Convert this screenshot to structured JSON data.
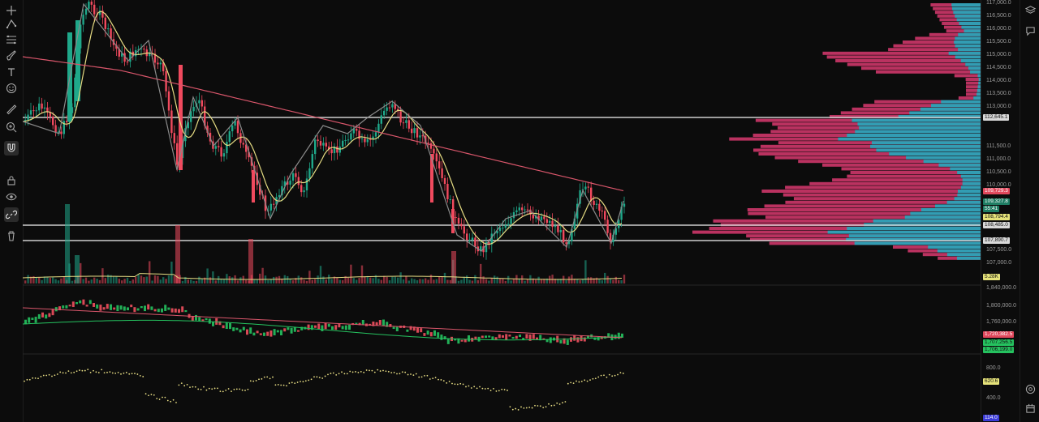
{
  "toolbar": {
    "tools": [
      {
        "name": "crosshair-tool",
        "icon": "crosshair-icon"
      },
      {
        "name": "trend-line-tool",
        "icon": "trend-line-icon"
      },
      {
        "name": "fib-tool",
        "icon": "fib-retracement-icon"
      },
      {
        "name": "brush-tool",
        "icon": "brush-icon"
      },
      {
        "name": "text-tool",
        "icon": "text-icon"
      },
      {
        "name": "emoji-tool",
        "icon": "emoji-icon"
      },
      {
        "name": "ruler-tool",
        "icon": "ruler-icon"
      },
      {
        "name": "zoom-tool",
        "icon": "zoom-in-icon"
      },
      {
        "name": "magnet-tool",
        "icon": "magnet-icon",
        "active": true
      },
      {
        "name": "lock-drawings-tool",
        "icon": "lock-icon"
      },
      {
        "name": "hide-drawings-tool",
        "icon": "eye-icon"
      },
      {
        "name": "link-tool",
        "icon": "link-icon",
        "active": true
      },
      {
        "name": "delete-drawings-tool",
        "icon": "trash-icon"
      }
    ]
  },
  "right_rail": [
    {
      "name": "layers-button",
      "icon": "layers-icon"
    },
    {
      "name": "chat-button",
      "icon": "chat-icon"
    },
    {
      "name": "alerts-button",
      "icon": "target-icon"
    },
    {
      "name": "calendar-button",
      "icon": "calendar-icon"
    }
  ],
  "price_axis": {
    "ticks": [
      "117,000.0",
      "116,500.0",
      "116,000.0",
      "115,500.0",
      "115,000.0",
      "114,500.0",
      "114,000.0",
      "113,500.0",
      "113,000.0",
      "111,500.0",
      "111,000.0",
      "110,500.0",
      "110,000.0",
      "107,500.0",
      "107,000.0"
    ],
    "labels": [
      {
        "text": "112,645.1",
        "bg": "#d9d9d9",
        "fg": "#111111"
      },
      {
        "text": "109,729.3",
        "bg": "#e0475b",
        "fg": "#ffffff"
      },
      {
        "text": "109,327.8",
        "bg": "#1e7d63",
        "fg": "#ffffff"
      },
      {
        "text": "55:41",
        "bg": "#1e7d63",
        "fg": "#ffffff"
      },
      {
        "text": "108,794.4",
        "bg": "#e6e37a",
        "fg": "#111111"
      },
      {
        "text": "108,485.0",
        "bg": "#d9d9d9",
        "fg": "#111111"
      },
      {
        "text": "107,890.7",
        "bg": "#d9d9d9",
        "fg": "#111111"
      },
      {
        "text": "5.28K",
        "bg": "#e6e37a",
        "fg": "#111111"
      }
    ],
    "pane2_ticks": [
      "1,840,000.0",
      "1,800,000.0",
      "1,760,000.0"
    ],
    "pane2_labels": [
      {
        "text": "1,720,382.5",
        "bg": "#e0475b",
        "fg": "#ffffff"
      },
      {
        "text": "1,707,256.5",
        "bg": "#25c25f",
        "fg": "#111111"
      },
      {
        "text": "1,706,199.0",
        "bg": "#25c25f",
        "fg": "#111111"
      }
    ],
    "pane3_ticks": [
      "800.0",
      "400.0"
    ],
    "pane3_labels": [
      {
        "text": "620.6",
        "bg": "#e6e37a",
        "fg": "#111111"
      },
      {
        "text": "114.0",
        "bg": "#3b3bd6",
        "fg": "#ffffff"
      }
    ]
  },
  "colors": {
    "up": "#1fa88a",
    "down": "#f04a5e",
    "ma_fast": "#e6dc83",
    "ma_slow": "#d9566b",
    "zigzag": "#8a8a8a",
    "level": "#cfcfcf",
    "vp_pink": "#d93a70",
    "vp_teal": "#23a8bd"
  }
}
